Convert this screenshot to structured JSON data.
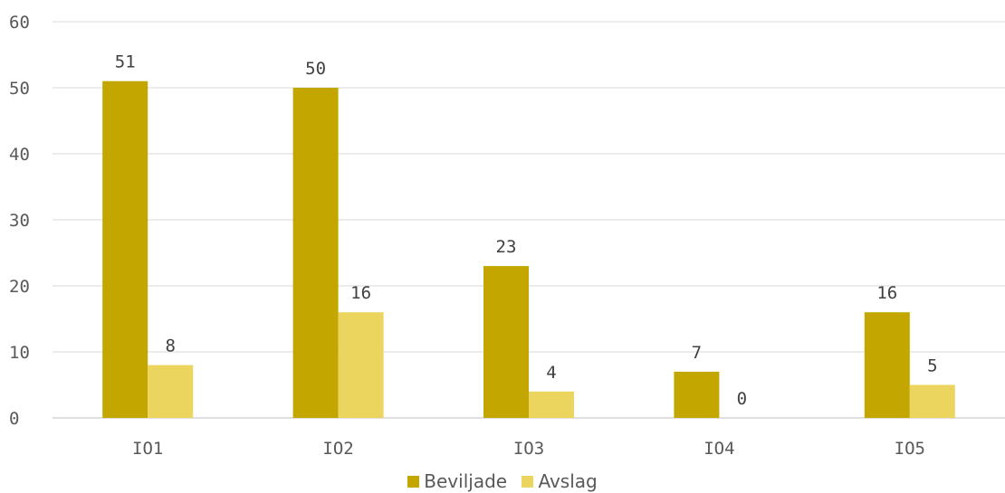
{
  "chart_data": {
    "type": "bar",
    "categories": [
      "IO1",
      "IO2",
      "IO3",
      "IO4",
      "IO5"
    ],
    "series": [
      {
        "name": "Beviljade",
        "values": [
          51,
          50,
          23,
          7,
          16
        ],
        "color": "#c3a700"
      },
      {
        "name": "Avslag",
        "values": [
          8,
          16,
          4,
          0,
          5
        ],
        "color": "#ebd55e"
      }
    ],
    "ylim": [
      0,
      60
    ],
    "yticks": [
      0,
      10,
      20,
      30,
      40,
      50,
      60
    ],
    "grid": true,
    "legend_position": "bottom",
    "data_labels": true
  }
}
